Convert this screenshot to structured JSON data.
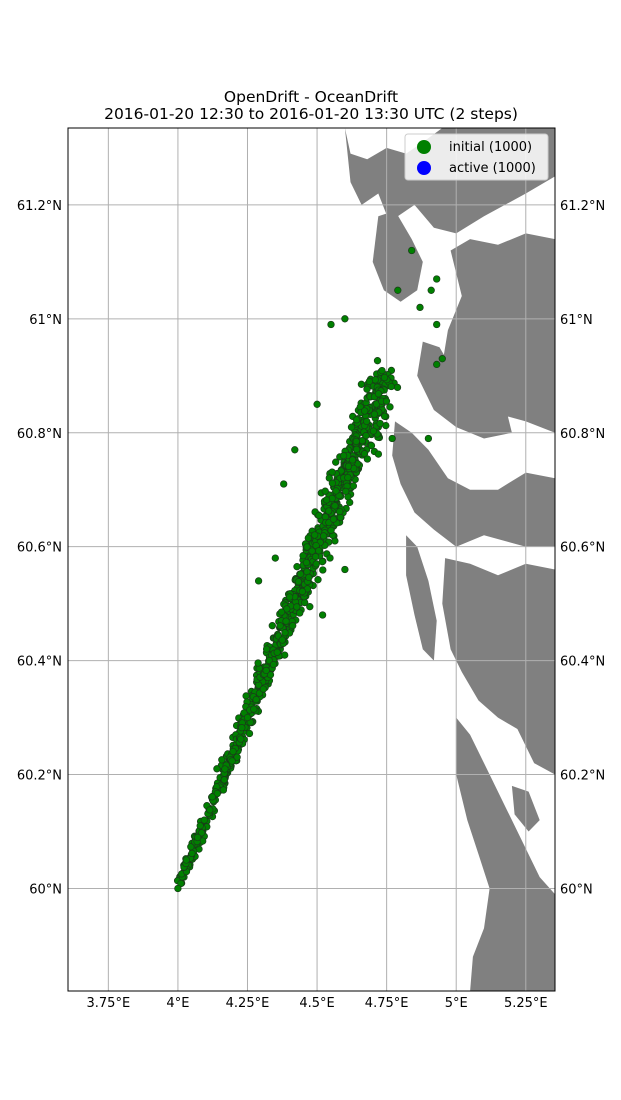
{
  "chart_data": {
    "type": "scatter",
    "title": "OpenDrift - OceanDrift",
    "subtitle": "2016-01-20 12:30 to 2016-01-20 13:30 UTC (2 steps)",
    "xlabel": "",
    "ylabel": "",
    "x_units": "degrees east",
    "y_units": "degrees north",
    "xlim": [
      3.605,
      5.355
    ],
    "ylim": [
      59.82,
      61.335
    ],
    "x_ticks": [
      3.75,
      4.0,
      4.25,
      4.5,
      4.75,
      5.0,
      5.25
    ],
    "x_tick_labels": [
      "3.75°E",
      "4°E",
      "4.25°E",
      "4.5°E",
      "4.75°E",
      "5°E",
      "5.25°E"
    ],
    "y_ticks": [
      60.0,
      60.2,
      60.4,
      60.6,
      60.8,
      61.0,
      61.2
    ],
    "y_tick_labels": [
      "60°N",
      "60.2°N",
      "60.4°N",
      "60.6°N",
      "60.8°N",
      "61°N",
      "61.2°N"
    ],
    "grid": true,
    "tick_labels_on_right": true,
    "legend": {
      "placement": "top-right",
      "entries": [
        {
          "label": "initial (1000)",
          "color": "#008000"
        },
        {
          "label": "active (1000)",
          "color": "#0000ff"
        }
      ]
    },
    "colors": {
      "particles": "#008000",
      "particle_edge": "#1a3a1a",
      "land": "#808080",
      "ocean": "#ffffff",
      "grid": "#b0b0b0"
    },
    "particle_count": 1000,
    "particle_distribution": {
      "description": "plume of seeded particles spreading from a point source northeastward",
      "source_point": [
        4.0,
        60.0
      ],
      "endpoint": [
        4.75,
        60.9
      ],
      "notable_points": [
        [
          4.84,
          61.12
        ],
        [
          4.93,
          61.07
        ],
        [
          4.79,
          61.05
        ],
        [
          4.91,
          61.05
        ],
        [
          4.87,
          61.02
        ],
        [
          4.6,
          61.0
        ],
        [
          4.55,
          60.99
        ],
        [
          4.93,
          60.99
        ],
        [
          4.93,
          60.92
        ],
        [
          4.95,
          60.93
        ],
        [
          4.9,
          60.79
        ],
        [
          4.77,
          60.79
        ],
        [
          4.6,
          60.56
        ],
        [
          4.52,
          60.48
        ],
        [
          4.35,
          60.58
        ],
        [
          4.29,
          60.54
        ],
        [
          4.42,
          60.77
        ],
        [
          4.5,
          60.85
        ],
        [
          4.38,
          60.71
        ],
        [
          4.25,
          60.3
        ],
        [
          4.14,
          60.21
        ],
        [
          4.08,
          60.11
        ],
        [
          4.03,
          60.05
        ],
        [
          4.0,
          60.0
        ]
      ]
    },
    "land_regions": [
      {
        "name": "coastline-and-islands",
        "points": [
          [
            4.6,
            61.335
          ],
          [
            4.62,
            61.29
          ],
          [
            4.68,
            61.28
          ],
          [
            4.75,
            61.3
          ],
          [
            4.82,
            61.29
          ],
          [
            4.88,
            61.31
          ],
          [
            4.95,
            61.335
          ],
          [
            5.355,
            61.335
          ],
          [
            5.355,
            61.25
          ],
          [
            5.25,
            61.22
          ],
          [
            5.1,
            61.18
          ],
          [
            5.0,
            61.15
          ],
          [
            4.92,
            61.16
          ],
          [
            4.85,
            61.2
          ],
          [
            4.76,
            61.17
          ],
          [
            4.72,
            61.22
          ],
          [
            4.66,
            61.2
          ],
          [
            4.62,
            61.24
          ]
        ]
      },
      {
        "name": "island-north",
        "points": [
          [
            4.72,
            61.18
          ],
          [
            4.78,
            61.19
          ],
          [
            4.84,
            61.14
          ],
          [
            4.88,
            61.1
          ],
          [
            4.86,
            61.05
          ],
          [
            4.8,
            61.03
          ],
          [
            4.74,
            61.05
          ],
          [
            4.7,
            61.1
          ]
        ]
      },
      {
        "name": "mainland-east",
        "points": [
          [
            4.98,
            61.12
          ],
          [
            5.05,
            61.14
          ],
          [
            5.15,
            61.13
          ],
          [
            5.25,
            61.15
          ],
          [
            5.355,
            61.14
          ],
          [
            5.355,
            60.8
          ],
          [
            5.25,
            60.82
          ],
          [
            5.1,
            60.84
          ],
          [
            5.02,
            60.88
          ],
          [
            4.95,
            60.92
          ],
          [
            4.97,
            60.98
          ],
          [
            5.02,
            61.04
          ]
        ]
      },
      {
        "name": "fjord-shore-1",
        "points": [
          [
            4.88,
            60.96
          ],
          [
            4.94,
            60.95
          ],
          [
            5.0,
            60.9
          ],
          [
            5.08,
            60.86
          ],
          [
            5.18,
            60.84
          ],
          [
            5.2,
            60.8
          ],
          [
            5.1,
            60.79
          ],
          [
            5.0,
            60.81
          ],
          [
            4.92,
            60.84
          ],
          [
            4.86,
            60.9
          ]
        ]
      },
      {
        "name": "islands-mid",
        "points": [
          [
            4.78,
            60.82
          ],
          [
            4.84,
            60.8
          ],
          [
            4.9,
            60.77
          ],
          [
            4.97,
            60.72
          ],
          [
            5.05,
            60.7
          ],
          [
            5.15,
            60.7
          ],
          [
            5.25,
            60.73
          ],
          [
            5.355,
            60.72
          ],
          [
            5.355,
            60.6
          ],
          [
            5.25,
            60.6
          ],
          [
            5.1,
            60.62
          ],
          [
            5.0,
            60.6
          ],
          [
            4.92,
            60.63
          ],
          [
            4.85,
            60.66
          ],
          [
            4.8,
            60.71
          ],
          [
            4.77,
            60.76
          ]
        ]
      },
      {
        "name": "island-west-strip",
        "points": [
          [
            4.82,
            60.62
          ],
          [
            4.86,
            60.6
          ],
          [
            4.9,
            60.54
          ],
          [
            4.93,
            60.47
          ],
          [
            4.92,
            60.4
          ],
          [
            4.88,
            60.42
          ],
          [
            4.85,
            60.48
          ],
          [
            4.82,
            60.55
          ]
        ]
      },
      {
        "name": "large-island-south",
        "points": [
          [
            4.96,
            60.58
          ],
          [
            5.05,
            60.57
          ],
          [
            5.15,
            60.55
          ],
          [
            5.25,
            60.57
          ],
          [
            5.355,
            60.56
          ],
          [
            5.355,
            60.2
          ],
          [
            5.28,
            60.22
          ],
          [
            5.22,
            60.28
          ],
          [
            5.15,
            60.3
          ],
          [
            5.08,
            60.33
          ],
          [
            5.02,
            60.38
          ],
          [
            4.98,
            60.42
          ],
          [
            4.95,
            60.5
          ]
        ]
      },
      {
        "name": "southern-archipelago",
        "points": [
          [
            5.0,
            60.3
          ],
          [
            5.05,
            60.27
          ],
          [
            5.12,
            60.2
          ],
          [
            5.18,
            60.14
          ],
          [
            5.24,
            60.08
          ],
          [
            5.3,
            60.02
          ],
          [
            5.355,
            59.99
          ],
          [
            5.355,
            59.82
          ],
          [
            5.05,
            59.82
          ],
          [
            5.06,
            59.88
          ],
          [
            5.1,
            59.93
          ],
          [
            5.12,
            60.0
          ],
          [
            5.08,
            60.06
          ],
          [
            5.04,
            60.12
          ],
          [
            5.0,
            60.2
          ]
        ]
      },
      {
        "name": "island-sw-small",
        "points": [
          [
            5.2,
            60.18
          ],
          [
            5.26,
            60.17
          ],
          [
            5.3,
            60.12
          ],
          [
            5.26,
            60.1
          ],
          [
            5.21,
            60.13
          ]
        ]
      }
    ]
  }
}
